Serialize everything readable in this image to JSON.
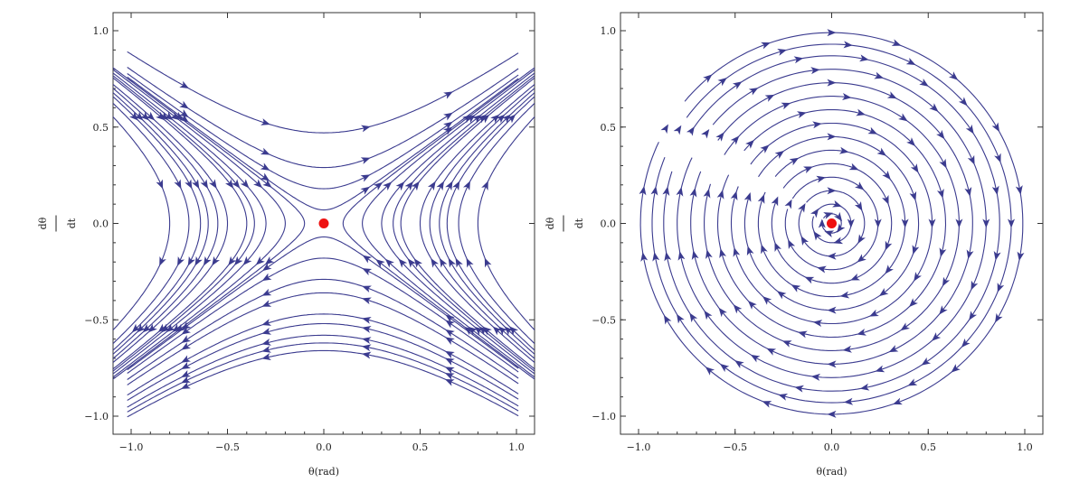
{
  "chart_data": [
    {
      "type": "streamplot",
      "system": "saddle",
      "title": "",
      "xlabel": "θ(rad)",
      "ylabel_numerator": "dθ",
      "ylabel_denominator": "dt",
      "xlim": [
        -1.0,
        1.0
      ],
      "ylim": [
        -1.0,
        1.0
      ],
      "xticks": [
        "-1.0",
        "-0.5",
        "0.0",
        "0.5",
        "1.0"
      ],
      "yticks": [
        "-1.0",
        "-0.5",
        "0.0",
        "0.5",
        "1.0"
      ],
      "fixed_point": {
        "x": 0,
        "y": 0
      },
      "stream_levels": [
        0.47,
        0.29,
        0.18,
        0.07,
        -0.07,
        -0.18,
        -0.29,
        -0.47,
        -0.66,
        -0.36,
        -0.52,
        -0.58,
        -0.62,
        0.36,
        0.55,
        0.64,
        0.1,
        0.2,
        0.3,
        0.4,
        0.5,
        0.6,
        0.7,
        0.8
      ]
    },
    {
      "type": "streamplot",
      "system": "center",
      "title": "",
      "xlabel": "θ(rad)",
      "ylabel_numerator": "dθ",
      "ylabel_denominator": "dt",
      "xlim": [
        -1.0,
        1.0
      ],
      "ylim": [
        -1.0,
        1.0
      ],
      "xticks": [
        "-1.0",
        "-0.5",
        "0.0",
        "0.5",
        "1.0"
      ],
      "yticks": [
        "-1.0",
        "-0.5",
        "0.0",
        "0.5",
        "1.0"
      ],
      "fixed_point": {
        "x": 0,
        "y": 0
      },
      "stream_levels": [
        0.99,
        0.93,
        0.87,
        0.8,
        0.73,
        0.66,
        0.59,
        0.52,
        0.45,
        0.38,
        0.31,
        0.24,
        0.17,
        0.1,
        0.05
      ]
    }
  ],
  "colors": {
    "stream": "#3b3b8f",
    "fixed_point": "#ee1111",
    "frame": "#333333"
  }
}
